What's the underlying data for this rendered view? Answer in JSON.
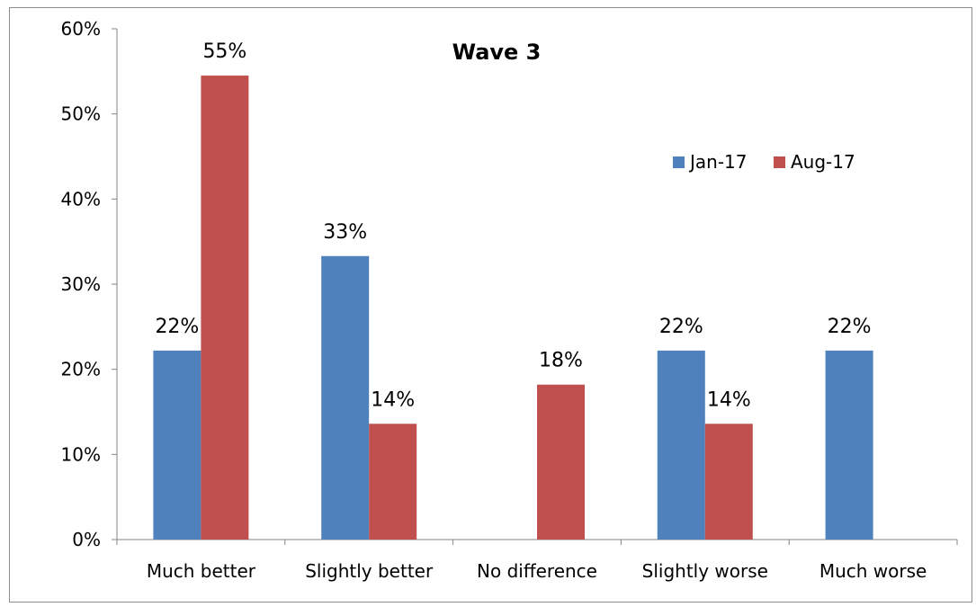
{
  "chart_data": {
    "type": "bar",
    "title": "Wave 3",
    "xlabel": "",
    "ylabel": "",
    "categories": [
      "Much better",
      "Slightly better",
      "No difference",
      "Slightly worse",
      "Much worse"
    ],
    "series": [
      {
        "name": "Jan-17",
        "color": "#4f81bd",
        "values": [
          22.2,
          33.3,
          null,
          22.2,
          22.2
        ],
        "labels": [
          "22%",
          "33%",
          "",
          "22%",
          "22%"
        ]
      },
      {
        "name": "Aug-17",
        "color": "#c0504d",
        "values": [
          54.5,
          13.6,
          18.2,
          13.6,
          null
        ],
        "labels": [
          "55%",
          "14%",
          "18%",
          "14%",
          ""
        ]
      }
    ],
    "ylim": [
      0,
      60
    ],
    "yticks": [
      0,
      10,
      20,
      30,
      40,
      50,
      60
    ],
    "ytick_labels": [
      "0%",
      "10%",
      "20%",
      "30%",
      "40%",
      "50%",
      "60%"
    ],
    "grid": false,
    "legend_position": "right"
  }
}
